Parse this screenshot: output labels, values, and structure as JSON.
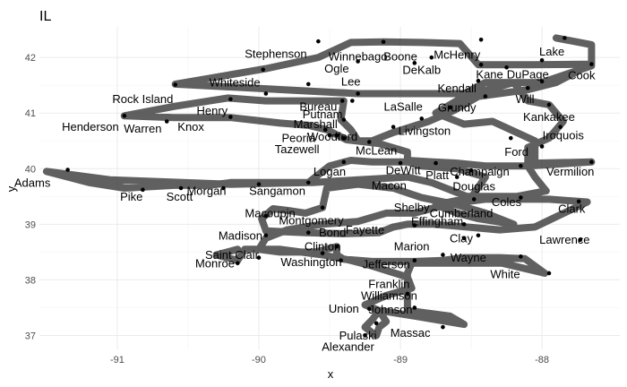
{
  "chart_data": {
    "type": "line",
    "title": "IL",
    "xlabel": "x",
    "ylabel": "y",
    "xlim": [
      -91.55,
      -87.45
    ],
    "ylim": [
      36.75,
      42.55
    ],
    "xticks": [
      -91,
      -90,
      -89,
      -88
    ],
    "xtick_labels": [
      "-91",
      "-90",
      "-89",
      "-88"
    ],
    "yticks": [
      37,
      38,
      39,
      40,
      41,
      42
    ],
    "ytick_labels": [
      "37",
      "38",
      "39",
      "40",
      "41",
      "42"
    ],
    "grid": true,
    "legend": "none",
    "colors": {
      "path": "#333333",
      "point": "#000000",
      "grid": "#ebebeb"
    },
    "path": [
      [
        -87.9,
        42.35
      ],
      [
        -87.65,
        42.23
      ],
      [
        -87.65,
        41.88
      ],
      [
        -88.07,
        41.87
      ],
      [
        -88.45,
        41.87
      ],
      [
        -88.58,
        42.25
      ],
      [
        -88.85,
        42.27
      ],
      [
        -89.12,
        42.28
      ],
      [
        -89.35,
        42.27
      ],
      [
        -89.58,
        42.0
      ],
      [
        -89.95,
        41.8
      ],
      [
        -90.59,
        41.52
      ],
      [
        -89.3,
        41.35
      ],
      [
        -88.9,
        41.35
      ],
      [
        -88.55,
        41.35
      ],
      [
        -88.4,
        41.55
      ],
      [
        -88.0,
        41.55
      ],
      [
        -87.65,
        41.85
      ],
      [
        -87.65,
        41.88
      ],
      [
        -87.9,
        41.55
      ],
      [
        -88.1,
        41.42
      ],
      [
        -88.45,
        41.3
      ],
      [
        -88.62,
        41.05
      ],
      [
        -88.8,
        40.85
      ],
      [
        -89.05,
        40.65
      ],
      [
        -89.2,
        40.5
      ],
      [
        -89.3,
        40.5
      ],
      [
        -89.35,
        40.7
      ],
      [
        -89.42,
        40.88
      ],
      [
        -89.4,
        41.22
      ],
      [
        -89.65,
        41.22
      ],
      [
        -89.95,
        41.22
      ],
      [
        -90.22,
        41.27
      ],
      [
        -90.6,
        41.12
      ],
      [
        -90.95,
        40.95
      ],
      [
        -90.6,
        40.92
      ],
      [
        -90.2,
        40.92
      ],
      [
        -89.85,
        40.82
      ],
      [
        -89.65,
        40.78
      ],
      [
        -89.52,
        40.7
      ],
      [
        -89.38,
        40.52
      ],
      [
        -89.15,
        40.45
      ],
      [
        -88.95,
        40.3
      ],
      [
        -88.95,
        40.15
      ],
      [
        -88.77,
        40.12
      ],
      [
        -88.6,
        40.1
      ],
      [
        -88.4,
        40.05
      ],
      [
        -88.1,
        40.05
      ],
      [
        -87.65,
        40.12
      ],
      [
        -88.05,
        40.1
      ],
      [
        -88.05,
        40.5
      ],
      [
        -88.35,
        40.85
      ],
      [
        -88.55,
        40.8
      ],
      [
        -88.75,
        41.0
      ],
      [
        -88.55,
        41.3
      ],
      [
        -88.2,
        41.55
      ],
      [
        -88.1,
        41.22
      ],
      [
        -87.95,
        41.15
      ],
      [
        -87.85,
        40.85
      ],
      [
        -87.95,
        40.55
      ],
      [
        -88.1,
        40.38
      ],
      [
        -88.1,
        40.05
      ],
      [
        -88.05,
        39.85
      ],
      [
        -87.97,
        39.6
      ],
      [
        -88.18,
        39.5
      ],
      [
        -88.53,
        39.5
      ],
      [
        -88.78,
        39.75
      ],
      [
        -88.95,
        39.85
      ],
      [
        -89.3,
        39.8
      ],
      [
        -89.62,
        39.75
      ],
      [
        -90.2,
        39.75
      ],
      [
        -90.35,
        39.7
      ],
      [
        -90.6,
        39.7
      ],
      [
        -90.95,
        39.65
      ],
      [
        -91.2,
        39.75
      ],
      [
        -91.5,
        39.95
      ],
      [
        -91.05,
        39.8
      ],
      [
        -90.2,
        39.72
      ],
      [
        -89.65,
        39.75
      ],
      [
        -89.5,
        40.05
      ],
      [
        -89.35,
        40.15
      ],
      [
        -89.2,
        40.12
      ],
      [
        -88.95,
        40.12
      ],
      [
        -88.85,
        40.05
      ],
      [
        -88.6,
        40.0
      ],
      [
        -88.4,
        39.85
      ],
      [
        -88.5,
        39.48
      ],
      [
        -88.75,
        39.35
      ],
      [
        -88.6,
        39.2
      ],
      [
        -88.45,
        39.1
      ],
      [
        -88.2,
        39.0
      ],
      [
        -88.4,
        39.2
      ],
      [
        -88.6,
        39.35
      ],
      [
        -88.85,
        39.48
      ],
      [
        -89.05,
        39.65
      ],
      [
        -89.3,
        39.72
      ],
      [
        -89.52,
        39.65
      ],
      [
        -89.55,
        39.3
      ],
      [
        -89.67,
        39.2
      ],
      [
        -89.8,
        39.25
      ],
      [
        -89.9,
        39.28
      ],
      [
        -89.98,
        39.1
      ],
      [
        -89.95,
        38.88
      ],
      [
        -89.67,
        38.85
      ],
      [
        -89.4,
        38.83
      ],
      [
        -89.15,
        38.85
      ],
      [
        -89.05,
        38.95
      ],
      [
        -88.95,
        39.0
      ],
      [
        -88.77,
        39.0
      ],
      [
        -88.62,
        38.97
      ],
      [
        -88.3,
        38.9
      ],
      [
        -88.05,
        38.95
      ],
      [
        -87.68,
        39.4
      ],
      [
        -87.95,
        39.45
      ],
      [
        -88.4,
        39.45
      ],
      [
        -88.65,
        39.37
      ],
      [
        -88.9,
        39.2
      ],
      [
        -89.1,
        39.2
      ],
      [
        -89.3,
        39.05
      ],
      [
        -89.55,
        39.0
      ],
      [
        -89.8,
        38.9
      ],
      [
        -89.95,
        38.75
      ],
      [
        -90.0,
        38.55
      ],
      [
        -89.85,
        38.5
      ],
      [
        -89.6,
        38.5
      ],
      [
        -89.45,
        38.6
      ],
      [
        -89.45,
        38.45
      ],
      [
        -89.4,
        38.37
      ],
      [
        -89.2,
        38.33
      ],
      [
        -88.9,
        38.33
      ],
      [
        -88.7,
        38.35
      ],
      [
        -88.55,
        38.4
      ],
      [
        -88.3,
        38.4
      ],
      [
        -88.12,
        38.38
      ],
      [
        -87.98,
        38.12
      ],
      [
        -88.28,
        38.3
      ],
      [
        -88.55,
        38.3
      ],
      [
        -88.75,
        38.3
      ],
      [
        -88.92,
        38.3
      ],
      [
        -88.95,
        38.12
      ],
      [
        -88.95,
        37.88
      ],
      [
        -88.95,
        37.68
      ],
      [
        -88.95,
        37.45
      ],
      [
        -88.65,
        37.35
      ],
      [
        -88.55,
        37.2
      ],
      [
        -88.9,
        37.35
      ],
      [
        -89.15,
        37.45
      ],
      [
        -89.2,
        37.28
      ],
      [
        -89.25,
        37.15
      ],
      [
        -89.2,
        37.05
      ],
      [
        -89.17,
        37.0
      ],
      [
        -89.15,
        37.15
      ],
      [
        -89.1,
        37.25
      ],
      [
        -89.15,
        37.45
      ],
      [
        -89.25,
        37.55
      ],
      [
        -89.1,
        37.72
      ],
      [
        -88.92,
        37.85
      ],
      [
        -88.95,
        38.05
      ],
      [
        -89.2,
        38.25
      ],
      [
        -89.35,
        38.35
      ],
      [
        -89.55,
        38.45
      ],
      [
        -89.85,
        38.55
      ],
      [
        -90.1,
        38.55
      ],
      [
        -90.15,
        38.35
      ],
      [
        -90.3,
        38.45
      ],
      [
        -90.15,
        38.55
      ]
    ],
    "points": [
      [
        -89.58,
        42.29
      ],
      [
        -87.84,
        42.35
      ],
      [
        -87.65,
        41.88
      ],
      [
        -88.0,
        41.95
      ],
      [
        -88.43,
        41.87
      ],
      [
        -88.43,
        42.32
      ],
      [
        -88.78,
        42.0
      ],
      [
        -89.12,
        42.28
      ],
      [
        -88.9,
        41.9
      ],
      [
        -89.3,
        41.93
      ],
      [
        -89.97,
        41.78
      ],
      [
        -90.59,
        41.51
      ],
      [
        -89.65,
        41.52
      ],
      [
        -89.3,
        41.35
      ],
      [
        -89.34,
        41.22
      ],
      [
        -89.41,
        41.22
      ],
      [
        -88.0,
        41.57
      ],
      [
        -88.25,
        41.82
      ],
      [
        -88.45,
        41.58
      ],
      [
        -88.1,
        41.45
      ],
      [
        -88.4,
        41.3
      ],
      [
        -88.65,
        41.1
      ],
      [
        -88.85,
        40.9
      ],
      [
        -89.05,
        40.75
      ],
      [
        -89.4,
        40.88
      ],
      [
        -89.22,
        40.48
      ],
      [
        -89.45,
        40.6
      ],
      [
        -89.53,
        40.7
      ],
      [
        -89.4,
        40.55
      ],
      [
        -90.95,
        40.95
      ],
      [
        -90.65,
        40.85
      ],
      [
        -90.2,
        40.93
      ],
      [
        -90.2,
        41.25
      ],
      [
        -89.95,
        41.35
      ],
      [
        -89.5,
        40.6
      ],
      [
        -88.5,
        39.97
      ],
      [
        -88.0,
        40.4
      ],
      [
        -87.87,
        40.75
      ],
      [
        -87.95,
        41.15
      ],
      [
        -88.22,
        40.55
      ],
      [
        -88.15,
        40.05
      ],
      [
        -87.65,
        40.12
      ],
      [
        -88.6,
        39.85
      ],
      [
        -88.75,
        40.1
      ],
      [
        -89.0,
        40.1
      ],
      [
        -89.4,
        40.12
      ],
      [
        -89.65,
        39.75
      ],
      [
        -90.0,
        39.72
      ],
      [
        -90.25,
        39.65
      ],
      [
        -90.55,
        39.65
      ],
      [
        -90.82,
        39.62
      ],
      [
        -91.35,
        39.98
      ],
      [
        -89.55,
        39.3
      ],
      [
        -89.95,
        39.15
      ],
      [
        -89.65,
        38.85
      ],
      [
        -89.95,
        38.8
      ],
      [
        -89.45,
        38.6
      ],
      [
        -89.55,
        38.48
      ],
      [
        -90.0,
        38.4
      ],
      [
        -90.15,
        38.3
      ],
      [
        -89.42,
        38.35
      ],
      [
        -88.9,
        38.35
      ],
      [
        -88.7,
        38.45
      ],
      [
        -88.55,
        38.75
      ],
      [
        -88.45,
        38.8
      ],
      [
        -88.15,
        38.42
      ],
      [
        -87.95,
        38.12
      ],
      [
        -87.73,
        38.72
      ],
      [
        -88.9,
        38.98
      ],
      [
        -88.55,
        39.0
      ],
      [
        -88.48,
        39.45
      ],
      [
        -88.15,
        39.48
      ],
      [
        -87.74,
        39.41
      ],
      [
        -88.95,
        37.75
      ],
      [
        -88.9,
        37.5
      ],
      [
        -89.22,
        37.48
      ],
      [
        -88.7,
        37.15
      ],
      [
        -89.17,
        37.22
      ],
      [
        -89.25,
        37.0
      ]
    ],
    "labels": [
      {
        "text": "Stephenson",
        "x": -89.88,
        "y": 42.07
      },
      {
        "text": "Winnebago",
        "x": -89.3,
        "y": 42.02
      },
      {
        "text": "Boone",
        "x": -89.0,
        "y": 42.02
      },
      {
        "text": "McHenry",
        "x": -88.6,
        "y": 42.05
      },
      {
        "text": "Lake",
        "x": -87.93,
        "y": 42.11
      },
      {
        "text": "Ogle",
        "x": -89.45,
        "y": 41.8
      },
      {
        "text": "DeKalb",
        "x": -88.85,
        "y": 41.78
      },
      {
        "text": "Kane",
        "x": -88.37,
        "y": 41.7
      },
      {
        "text": "DuPage",
        "x": -88.1,
        "y": 41.7
      },
      {
        "text": "Cook",
        "x": -87.72,
        "y": 41.68
      },
      {
        "text": "Whiteside",
        "x": -90.17,
        "y": 41.55
      },
      {
        "text": "Lee",
        "x": -89.35,
        "y": 41.57
      },
      {
        "text": "Kendall",
        "x": -88.6,
        "y": 41.45
      },
      {
        "text": "Rock Island",
        "x": -90.82,
        "y": 41.25
      },
      {
        "text": "Will",
        "x": -88.12,
        "y": 41.25
      },
      {
        "text": "Bureau",
        "x": -89.58,
        "y": 41.12
      },
      {
        "text": "LaSalle",
        "x": -88.98,
        "y": 41.12
      },
      {
        "text": "Grundy",
        "x": -88.6,
        "y": 41.1
      },
      {
        "text": "Henry",
        "x": -90.33,
        "y": 41.04
      },
      {
        "text": "Putnam",
        "x": -89.55,
        "y": 40.98
      },
      {
        "text": "Kankakee",
        "x": -87.95,
        "y": 40.93
      },
      {
        "text": "Marshall",
        "x": -89.6,
        "y": 40.8
      },
      {
        "text": "Henderson",
        "x": -91.19,
        "y": 40.75
      },
      {
        "text": "Warren",
        "x": -90.82,
        "y": 40.72
      },
      {
        "text": "Knox",
        "x": -90.48,
        "y": 40.75
      },
      {
        "text": "Livingston",
        "x": -88.83,
        "y": 40.68
      },
      {
        "text": "Iroquois",
        "x": -87.85,
        "y": 40.6
      },
      {
        "text": "Peoria",
        "x": -89.72,
        "y": 40.55
      },
      {
        "text": "Woodford",
        "x": -89.48,
        "y": 40.58
      },
      {
        "text": "Tazewell",
        "x": -89.73,
        "y": 40.35
      },
      {
        "text": "McLean",
        "x": -89.17,
        "y": 40.33
      },
      {
        "text": "Ford",
        "x": -88.18,
        "y": 40.3
      },
      {
        "text": "DeWitt",
        "x": -88.98,
        "y": 39.97
      },
      {
        "text": "Logan",
        "x": -89.5,
        "y": 39.95
      },
      {
        "text": "Champaign",
        "x": -88.44,
        "y": 39.95
      },
      {
        "text": "Platt",
        "x": -88.74,
        "y": 39.88
      },
      {
        "text": "Vermilion",
        "x": -87.8,
        "y": 39.95
      },
      {
        "text": "Adams",
        "x": -91.6,
        "y": 39.75
      },
      {
        "text": "Macon",
        "x": -89.08,
        "y": 39.7
      },
      {
        "text": "Douglas",
        "x": -88.48,
        "y": 39.68
      },
      {
        "text": "Morgan",
        "x": -90.37,
        "y": 39.6
      },
      {
        "text": "Sangamon",
        "x": -89.87,
        "y": 39.6
      },
      {
        "text": "Pike",
        "x": -90.9,
        "y": 39.5
      },
      {
        "text": "Scott",
        "x": -90.56,
        "y": 39.5
      },
      {
        "text": "Coles",
        "x": -88.25,
        "y": 39.4
      },
      {
        "text": "Shelby",
        "x": -88.92,
        "y": 39.3
      },
      {
        "text": "Clark",
        "x": -87.79,
        "y": 39.28
      },
      {
        "text": "Cumberland",
        "x": -88.57,
        "y": 39.2
      },
      {
        "text": "Macoupin",
        "x": -89.92,
        "y": 39.2
      },
      {
        "text": "Montgomery",
        "x": -89.63,
        "y": 39.07
      },
      {
        "text": "Effingham",
        "x": -88.74,
        "y": 39.05
      },
      {
        "text": "Fayette",
        "x": -89.25,
        "y": 38.9
      },
      {
        "text": "Bond",
        "x": -89.48,
        "y": 38.85
      },
      {
        "text": "Madison",
        "x": -90.13,
        "y": 38.8
      },
      {
        "text": "Clay",
        "x": -88.57,
        "y": 38.75
      },
      {
        "text": "Lawrence",
        "x": -87.84,
        "y": 38.72
      },
      {
        "text": "Clinton",
        "x": -89.55,
        "y": 38.6
      },
      {
        "text": "Marion",
        "x": -88.92,
        "y": 38.6
      },
      {
        "text": "Saint Clair",
        "x": -90.19,
        "y": 38.45
      },
      {
        "text": "Wayne",
        "x": -88.52,
        "y": 38.4
      },
      {
        "text": "Monroe",
        "x": -90.31,
        "y": 38.3
      },
      {
        "text": "Washington",
        "x": -89.63,
        "y": 38.32
      },
      {
        "text": "Jefferson",
        "x": -89.1,
        "y": 38.28
      },
      {
        "text": "White",
        "x": -88.26,
        "y": 38.1
      },
      {
        "text": "Franklin",
        "x": -89.08,
        "y": 37.93
      },
      {
        "text": "Williamson",
        "x": -89.08,
        "y": 37.72
      },
      {
        "text": "Union",
        "x": -89.4,
        "y": 37.48
      },
      {
        "text": "Johnson",
        "x": -89.07,
        "y": 37.47
      },
      {
        "text": "Massac",
        "x": -88.93,
        "y": 37.05
      },
      {
        "text": "Pulaski",
        "x": -89.3,
        "y": 37.0
      },
      {
        "text": "Alexander",
        "x": -89.37,
        "y": 36.8
      }
    ]
  }
}
